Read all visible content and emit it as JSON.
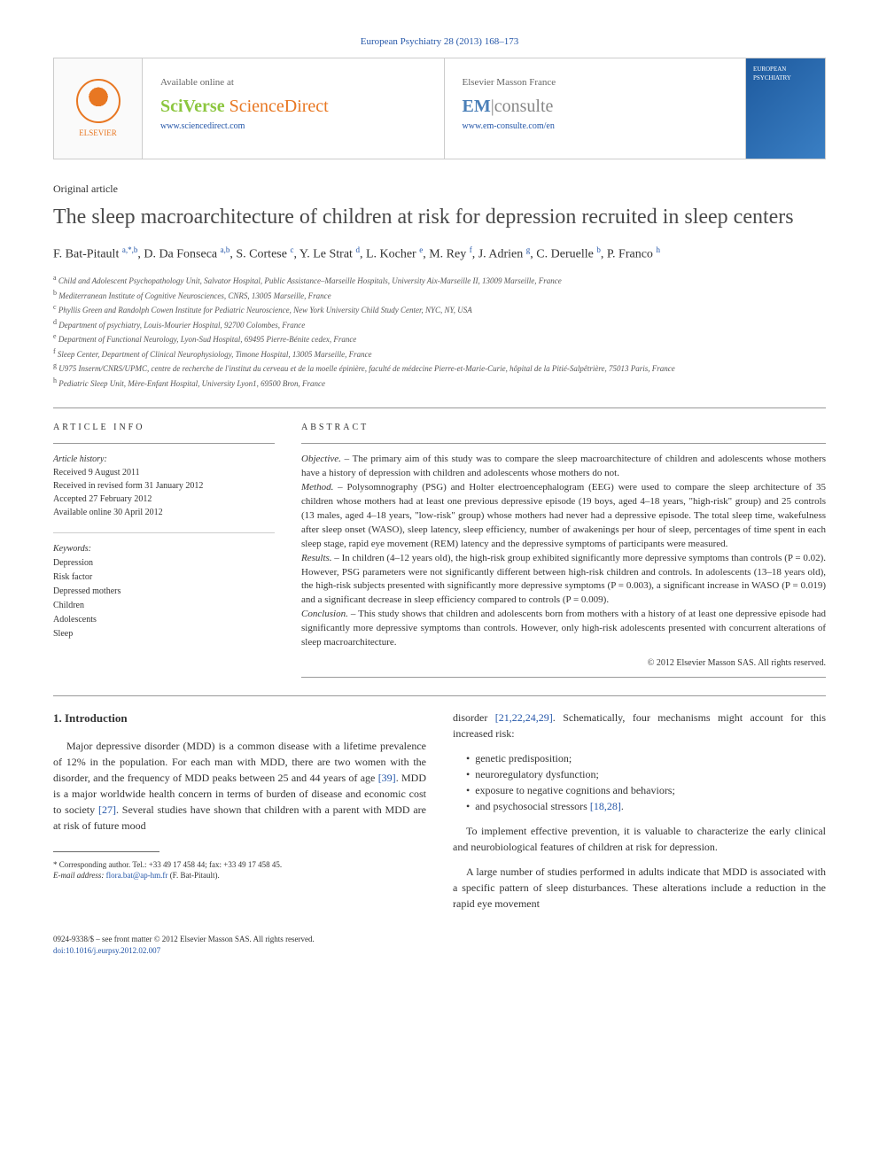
{
  "journal_ref": "European Psychiatry 28 (2013) 168–173",
  "publisher_box": {
    "elsevier_label": "ELSEVIER",
    "available_text": "Available online at",
    "sciverse_1": "SciVerse",
    "sciverse_2": " ScienceDirect",
    "sd_url": "www.sciencedirect.com",
    "masson_label": "Elsevier Masson France",
    "em_brand": "EM",
    "em_suffix": "|consulte",
    "em_url": "www.em-consulte.com/en",
    "cover_title": "EUROPEAN PSYCHIATRY"
  },
  "article_type": "Original article",
  "title": "The sleep macroarchitecture of children at risk for depression recruited in sleep centers",
  "authors_html": "F. Bat-Pitault <sup>a,*,b</sup>, D. Da Fonseca <sup>a,b</sup>, S. Cortese <sup>c</sup>, Y. Le Strat <sup>d</sup>, L. Kocher <sup>e</sup>, M. Rey <sup>f</sup>, J. Adrien <sup>g</sup>, C. Deruelle <sup>b</sup>, P. Franco <sup>h</sup>",
  "affiliations": [
    "a Child and Adolescent Psychopathology Unit, Salvator Hospital, Public Assistance–Marseille Hospitals, University Aix-Marseille II, 13009 Marseille, France",
    "b Mediterranean Institute of Cognitive Neurosciences, CNRS, 13005 Marseille, France",
    "c Phyllis Green and Randolph Cowen Institute for Pediatric Neuroscience, New York University Child Study Center, NYC, NY, USA",
    "d Department of psychiatry, Louis-Mourier Hospital, 92700 Colombes, France",
    "e Department of Functional Neurology, Lyon-Sud Hospital, 69495 Pierre-Bénite cedex, France",
    "f Sleep Center, Department of Clinical Neurophysiology, Timone Hospital, 13005 Marseille, France",
    "g U975 Inserm/CNRS/UPMC, centre de recherche de l'institut du cerveau et de la moelle épinière, faculté de médecine Pierre-et-Marie-Curie, hôpital de la Pitié-Salpêtrière, 75013 Paris, France",
    "h Pediatric Sleep Unit, Mère-Enfant Hospital, University Lyon1, 69500 Bron, France"
  ],
  "info_heading": "ARTICLE INFO",
  "abstract_heading": "ABSTRACT",
  "article_history": {
    "label": "Article history:",
    "received": "Received 9 August 2011",
    "revised": "Received in revised form 31 January 2012",
    "accepted": "Accepted 27 February 2012",
    "online": "Available online 30 April 2012"
  },
  "keywords_label": "Keywords:",
  "keywords": [
    "Depression",
    "Risk factor",
    "Depressed mothers",
    "Children",
    "Adolescents",
    "Sleep"
  ],
  "abstract": {
    "objective_label": "Objective. –",
    "objective": "The primary aim of this study was to compare the sleep macroarchitecture of children and adolescents whose mothers have a history of depression with children and adolescents whose mothers do not.",
    "method_label": "Method. –",
    "method": "Polysomnography (PSG) and Holter electroencephalogram (EEG) were used to compare the sleep architecture of 35 children whose mothers had at least one previous depressive episode (19 boys, aged 4–18 years, \"high-risk\" group) and 25 controls (13 males, aged 4–18 years, \"low-risk\" group) whose mothers had never had a depressive episode. The total sleep time, wakefulness after sleep onset (WASO), sleep latency, sleep efficiency, number of awakenings per hour of sleep, percentages of time spent in each sleep stage, rapid eye movement (REM) latency and the depressive symptoms of participants were measured.",
    "results_label": "Results. –",
    "results": "In children (4–12 years old), the high-risk group exhibited significantly more depressive symptoms than controls (P = 0.02). However, PSG parameters were not significantly different between high-risk children and controls. In adolescents (13–18 years old), the high-risk subjects presented with significantly more depressive symptoms (P = 0.003), a significant increase in WASO (P = 0.019) and a significant decrease in sleep efficiency compared to controls (P = 0.009).",
    "conclusion_label": "Conclusion. –",
    "conclusion": "This study shows that children and adolescents born from mothers with a history of at least one depressive episode had significantly more depressive symptoms than controls. However, only high-risk adolescents presented with concurrent alterations of sleep macroarchitecture."
  },
  "copyright": "© 2012 Elsevier Masson SAS. All rights reserved.",
  "intro_heading": "1. Introduction",
  "intro_para": "Major depressive disorder (MDD) is a common disease with a lifetime prevalence of 12% in the population. For each man with MDD, there are two women with the disorder, and the frequency of MDD peaks between 25 and 44 years of age [39]. MDD is a major worldwide health concern in terms of burden of disease and economic cost to society [27]. Several studies have shown that children with a parent with MDD are at risk of future mood",
  "mechanisms_intro": "disorder [21,22,24,29]. Schematically, four mechanisms might account for this increased risk:",
  "mechanisms": [
    "genetic predisposition;",
    "neuroregulatory dysfunction;",
    "exposure to negative cognitions and behaviors;",
    "and psychosocial stressors [18,28]."
  ],
  "para2": "To implement effective prevention, it is valuable to characterize the early clinical and neurobiological features of children at risk for depression.",
  "para3": "A large number of studies performed in adults indicate that MDD is associated with a specific pattern of sleep disturbances. These alterations include a reduction in the rapid eye movement",
  "footnote": {
    "corr": "* Corresponding author. Tel.: +33 49 17 458 44; fax: +33 49 17 458 45.",
    "email_label": "E-mail address:",
    "email": "flora.bat@ap-hm.fr",
    "email_suffix": "(F. Bat-Pitault)."
  },
  "footer": {
    "issn": "0924-9338/$ – see front matter © 2012 Elsevier Masson SAS. All rights reserved.",
    "doi": "doi:10.1016/j.eurpsy.2012.02.007"
  }
}
